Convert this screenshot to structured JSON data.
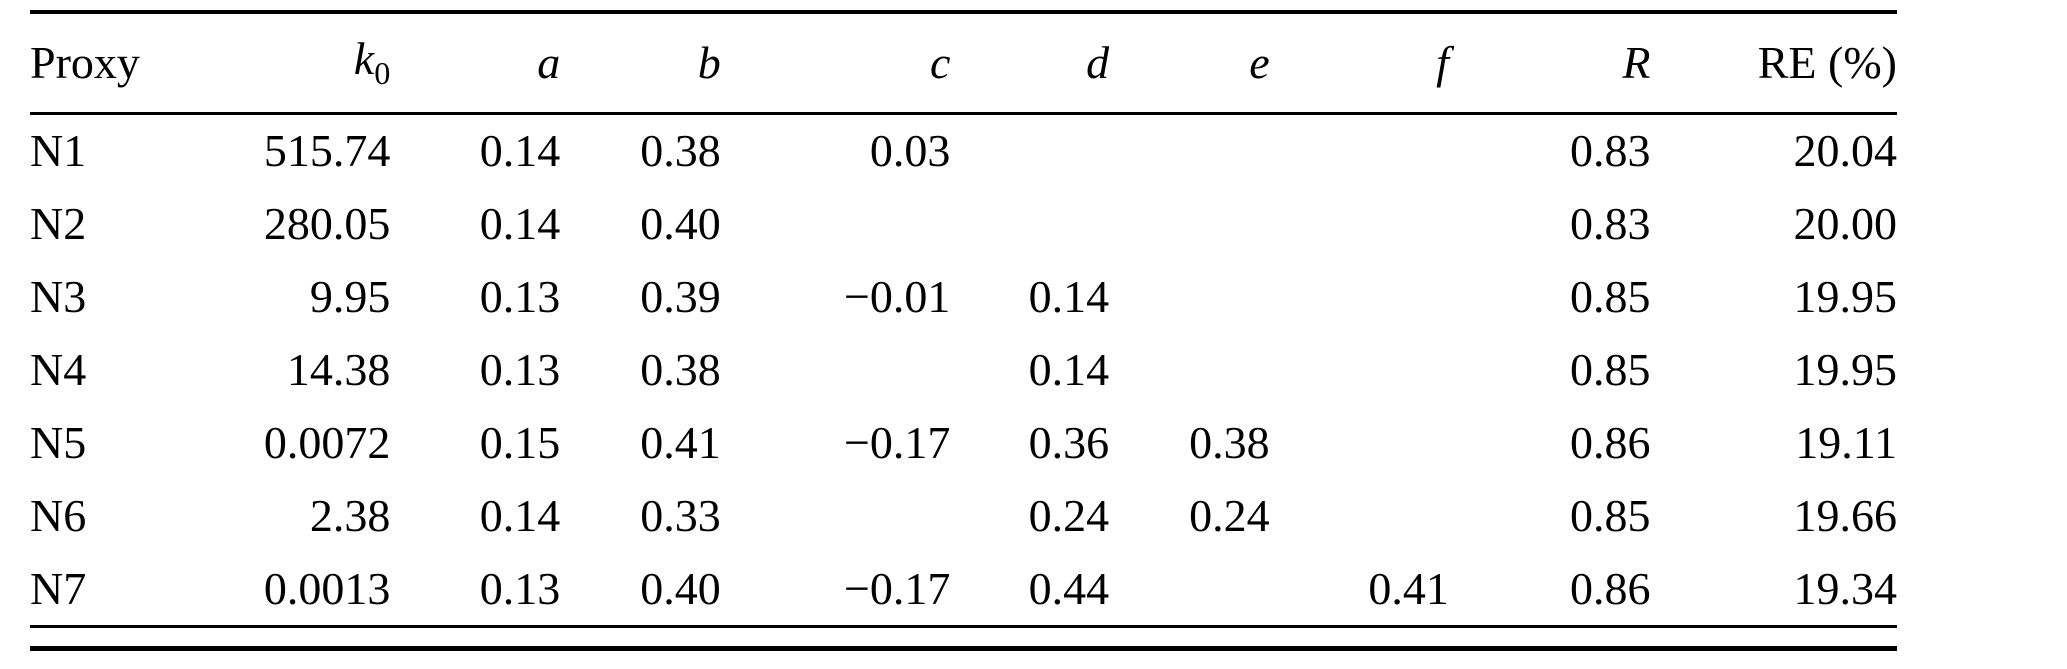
{
  "table": {
    "columns": [
      {
        "key": "proxy",
        "label": "Proxy"
      },
      {
        "key": "k0",
        "label": "k",
        "subscript": "0"
      },
      {
        "key": "a",
        "label": "a"
      },
      {
        "key": "b",
        "label": "b"
      },
      {
        "key": "c",
        "label": "c"
      },
      {
        "key": "d",
        "label": "d"
      },
      {
        "key": "e",
        "label": "e"
      },
      {
        "key": "f",
        "label": "f"
      },
      {
        "key": "R",
        "label": "R"
      },
      {
        "key": "RE",
        "label": "RE (%)"
      }
    ],
    "rows": [
      [
        "N1",
        "515.74",
        "0.14",
        "0.38",
        "0.03",
        "",
        "",
        "",
        "0.83",
        "20.04"
      ],
      [
        "N2",
        "280.05",
        "0.14",
        "0.40",
        "",
        "",
        "",
        "",
        "0.83",
        "20.00"
      ],
      [
        "N3",
        "9.95",
        "0.13",
        "0.39",
        "−0.01",
        "0.14",
        "",
        "",
        "0.85",
        "19.95"
      ],
      [
        "N4",
        "14.38",
        "0.13",
        "0.38",
        "",
        "0.14",
        "",
        "",
        "0.85",
        "19.95"
      ],
      [
        "N5",
        "0.0072",
        "0.15",
        "0.41",
        "−0.17",
        "0.36",
        "0.38",
        "",
        "0.86",
        "19.11"
      ],
      [
        "N6",
        "2.38",
        "0.14",
        "0.33",
        "",
        "0.24",
        "0.24",
        "",
        "0.85",
        "19.66"
      ],
      [
        "N7",
        "0.0013",
        "0.13",
        "0.40",
        "−0.17",
        "0.44",
        "",
        "0.41",
        "0.86",
        "19.34"
      ]
    ]
  },
  "chart_data": {
    "type": "table",
    "title": "",
    "columns": [
      "Proxy",
      "k0",
      "a",
      "b",
      "c",
      "d",
      "e",
      "f",
      "R",
      "RE (%)"
    ],
    "rows": [
      [
        "N1",
        515.74,
        0.14,
        0.38,
        0.03,
        null,
        null,
        null,
        0.83,
        20.04
      ],
      [
        "N2",
        280.05,
        0.14,
        0.4,
        null,
        null,
        null,
        null,
        0.83,
        20.0
      ],
      [
        "N3",
        9.95,
        0.13,
        0.39,
        -0.01,
        0.14,
        null,
        null,
        0.85,
        19.95
      ],
      [
        "N4",
        14.38,
        0.13,
        0.38,
        null,
        0.14,
        null,
        null,
        0.85,
        19.95
      ],
      [
        "N5",
        0.0072,
        0.15,
        0.41,
        -0.17,
        0.36,
        0.38,
        null,
        0.86,
        19.11
      ],
      [
        "N6",
        2.38,
        0.14,
        0.33,
        null,
        0.24,
        0.24,
        null,
        0.85,
        19.66
      ],
      [
        "N7",
        0.0013,
        0.13,
        0.4,
        -0.17,
        0.44,
        null,
        0.41,
        0.86,
        19.34
      ]
    ]
  }
}
